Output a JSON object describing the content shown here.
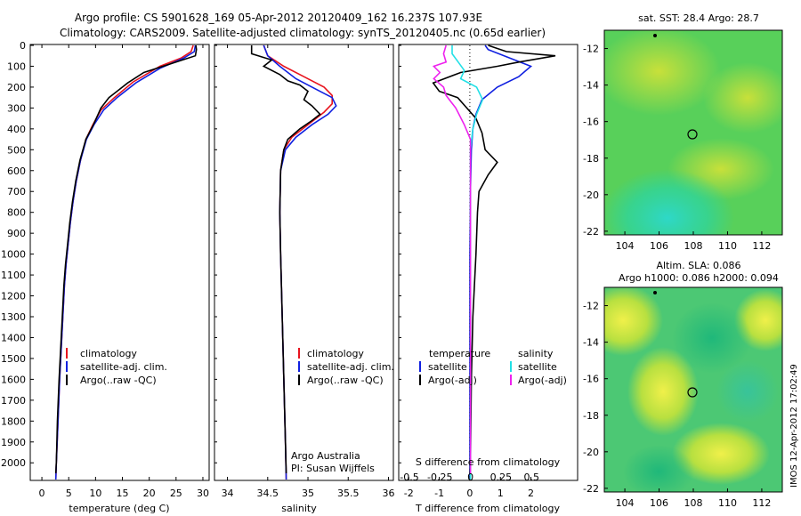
{
  "header": {
    "line1": "Argo profile: CS 5901628_169 05-Apr-2012 20120409_162 16.237S 107.93E",
    "line2": "Climatology: CARS2009. Satellite-adjusted climatology: synTS_20120405.nc (0.65d earlier)"
  },
  "colors": {
    "climatology": "#e8141e",
    "satellite": "#1020e0",
    "argo": "#000000",
    "sal_satellite": "#22e0e6",
    "sal_argo": "#ee22ee"
  },
  "depth_ticks": [
    "0",
    "100",
    "200",
    "300",
    "400",
    "500",
    "600",
    "700",
    "800",
    "900",
    "1000",
    "1100",
    "1200",
    "1300",
    "1400",
    "1500",
    "1600",
    "1700",
    "1800",
    "1900",
    "2000"
  ],
  "temp_panel": {
    "xlabel": "temperature (deg C)",
    "xticks": [
      "0",
      "5",
      "10",
      "15",
      "20",
      "25",
      "30"
    ],
    "legend": [
      "climatology",
      "satellite-adj. clim.",
      "Argo(..raw -QC)"
    ]
  },
  "sal_panel": {
    "xlabel": "salinity",
    "xticks": [
      "34",
      "34.5",
      "35",
      "35.5",
      "36"
    ],
    "legend": [
      "climatology",
      "satellite-adj. clim.",
      "Argo(..raw -QC)"
    ],
    "note1": "Argo Australia",
    "note2": "PI: Susan Wijffels"
  },
  "diff_panel": {
    "xlabel": "T difference from climatology",
    "top_label": "S difference from climatology",
    "s_ticks": [
      "-0.5",
      "-0.25",
      "0",
      "0.25",
      "0.5"
    ],
    "t_ticks": [
      "-2",
      "-1",
      "0",
      "1",
      "2"
    ],
    "legend_t_title": "temperature",
    "legend_s_title": "salinity",
    "legend_t": [
      "satellite",
      "Argo(-adj)"
    ],
    "legend_s": [
      "satellite",
      "Argo(-adj)"
    ]
  },
  "map1": {
    "title": "sat. SST: 28.4  Argo: 28.7",
    "yticks": [
      "-12",
      "-14",
      "-16",
      "-18",
      "-20",
      "-22"
    ],
    "xticks": [
      "104",
      "106",
      "108",
      "110",
      "112"
    ]
  },
  "map2": {
    "title1": "Altim. SLA: 0.086",
    "title2": "Argo h1000: 0.086  h2000: 0.094",
    "yticks": [
      "-12",
      "-14",
      "-16",
      "-18",
      "-20",
      "-22"
    ],
    "xticks": [
      "104",
      "106",
      "108",
      "110",
      "112"
    ]
  },
  "footer_stamp": "IMOS 12-Apr-2012 17:02:49",
  "chart_data": [
    {
      "type": "line",
      "title": "",
      "xlabel": "temperature (deg C)",
      "ylabel": "",
      "xlim": [
        -2,
        31
      ],
      "ylim": [
        2080,
        0
      ],
      "series": [
        {
          "name": "climatology",
          "points": [
            [
              28.2,
              0
            ],
            [
              27.8,
              30
            ],
            [
              26.0,
              60
            ],
            [
              22,
              100
            ],
            [
              17,
              175
            ],
            [
              13.5,
              250
            ],
            [
              11,
              310
            ],
            [
              9.5,
              380
            ],
            [
              8.2,
              450
            ],
            [
              7.2,
              550
            ],
            [
              6.4,
              650
            ],
            [
              5.8,
              750
            ],
            [
              5.3,
              850
            ],
            [
              4.9,
              950
            ],
            [
              4.5,
              1050
            ],
            [
              4.2,
              1150
            ],
            [
              3.9,
              1300
            ],
            [
              3.6,
              1450
            ],
            [
              3.3,
              1600
            ],
            [
              3.0,
              1800
            ],
            [
              2.7,
              2000
            ],
            [
              2.6,
              2080
            ]
          ]
        },
        {
          "name": "satellite-adj. clim.",
          "points": [
            [
              28.6,
              0
            ],
            [
              28.4,
              30
            ],
            [
              26.5,
              60
            ],
            [
              22,
              110
            ],
            [
              17.5,
              180
            ],
            [
              14,
              250
            ],
            [
              11.5,
              310
            ],
            [
              9.7,
              380
            ],
            [
              8.3,
              450
            ],
            [
              7.2,
              550
            ],
            [
              6.4,
              650
            ],
            [
              5.8,
              750
            ],
            [
              5.3,
              850
            ],
            [
              4.9,
              950
            ],
            [
              4.5,
              1050
            ],
            [
              4.2,
              1150
            ],
            [
              3.9,
              1300
            ],
            [
              3.6,
              1450
            ],
            [
              3.3,
              1600
            ],
            [
              3.0,
              1800
            ],
            [
              2.7,
              2000
            ],
            [
              2.6,
              2080
            ]
          ]
        },
        {
          "name": "Argo(..raw -QC)",
          "points": [
            [
              28.7,
              0
            ],
            [
              28.8,
              20
            ],
            [
              28.6,
              50
            ],
            [
              25,
              80
            ],
            [
              19,
              130
            ],
            [
              16,
              180
            ],
            [
              14,
              220
            ],
            [
              12.5,
              250
            ],
            [
              11,
              300
            ],
            [
              9.6,
              380
            ],
            [
              8.2,
              450
            ],
            [
              7.1,
              550
            ],
            [
              6.3,
              650
            ],
            [
              5.7,
              750
            ],
            [
              5.2,
              850
            ],
            [
              4.8,
              950
            ],
            [
              4.4,
              1050
            ],
            [
              4.1,
              1150
            ],
            [
              3.8,
              1300
            ],
            [
              3.5,
              1450
            ],
            [
              3.2,
              1600
            ],
            [
              2.9,
              1800
            ],
            [
              2.7,
              2000
            ],
            [
              2.6,
              2050
            ]
          ]
        }
      ]
    },
    {
      "type": "line",
      "title": "",
      "xlabel": "salinity",
      "ylabel": "",
      "xlim": [
        33.85,
        36.05
      ],
      "ylim": [
        2080,
        0
      ],
      "series": [
        {
          "name": "climatology",
          "points": [
            [
              34.45,
              0
            ],
            [
              34.5,
              50
            ],
            [
              34.7,
              100
            ],
            [
              34.95,
              150
            ],
            [
              35.2,
              200
            ],
            [
              35.3,
              240
            ],
            [
              35.3,
              280
            ],
            [
              35.2,
              320
            ],
            [
              35.0,
              380
            ],
            [
              34.8,
              440
            ],
            [
              34.7,
              500
            ],
            [
              34.66,
              600
            ],
            [
              34.65,
              800
            ],
            [
              34.66,
              1000
            ],
            [
              34.68,
              1300
            ],
            [
              34.7,
              1600
            ],
            [
              34.72,
              1900
            ],
            [
              34.73,
              2080
            ]
          ]
        },
        {
          "name": "satellite-adj. clim.",
          "points": [
            [
              34.45,
              0
            ],
            [
              34.5,
              50
            ],
            [
              34.65,
              100
            ],
            [
              34.85,
              160
            ],
            [
              35.1,
              210
            ],
            [
              35.3,
              250
            ],
            [
              35.35,
              290
            ],
            [
              35.25,
              330
            ],
            [
              35.05,
              380
            ],
            [
              34.85,
              440
            ],
            [
              34.72,
              500
            ],
            [
              34.66,
              600
            ],
            [
              34.65,
              800
            ],
            [
              34.66,
              1000
            ],
            [
              34.68,
              1300
            ],
            [
              34.7,
              1600
            ],
            [
              34.72,
              1900
            ],
            [
              34.73,
              2080
            ]
          ]
        },
        {
          "name": "Argo(..raw -QC)",
          "points": [
            [
              34.3,
              0
            ],
            [
              34.3,
              40
            ],
            [
              34.55,
              70
            ],
            [
              34.45,
              100
            ],
            [
              34.65,
              140
            ],
            [
              34.75,
              170
            ],
            [
              34.9,
              190
            ],
            [
              35.0,
              220
            ],
            [
              34.95,
              260
            ],
            [
              35.05,
              290
            ],
            [
              35.15,
              330
            ],
            [
              35.05,
              360
            ],
            [
              34.9,
              400
            ],
            [
              34.75,
              450
            ],
            [
              34.7,
              500
            ],
            [
              34.66,
              600
            ],
            [
              34.65,
              800
            ],
            [
              34.66,
              1000
            ],
            [
              34.68,
              1300
            ],
            [
              34.7,
              1600
            ],
            [
              34.72,
              1900
            ],
            [
              34.73,
              2050
            ]
          ]
        }
      ]
    },
    {
      "type": "line",
      "title": "",
      "xlabel": "T difference from climatology",
      "ylabel": "",
      "xlim": [
        -2.3,
        3.5
      ],
      "ylim": [
        2080,
        0
      ],
      "series": [
        {
          "name": "satellite",
          "points": [
            [
              0.5,
              0
            ],
            [
              0.6,
              20
            ],
            [
              1.3,
              60
            ],
            [
              2.0,
              100
            ],
            [
              1.6,
              150
            ],
            [
              0.9,
              200
            ],
            [
              0.4,
              260
            ],
            [
              0.2,
              330
            ],
            [
              0.1,
              400
            ],
            [
              0.05,
              500
            ],
            [
              0.02,
              700
            ],
            [
              0,
              1000
            ],
            [
              0,
              1500
            ],
            [
              0,
              2000
            ],
            [
              0,
              2080
            ]
          ]
        },
        {
          "name": "Argo(-adj)",
          "points": [
            [
              0.6,
              0
            ],
            [
              1.2,
              30
            ],
            [
              2.8,
              50
            ],
            [
              1.6,
              80
            ],
            [
              0.9,
              100
            ],
            [
              -0.3,
              130
            ],
            [
              -1.2,
              180
            ],
            [
              -1.0,
              220
            ],
            [
              -0.4,
              250
            ],
            [
              -0.1,
              300
            ],
            [
              0.2,
              350
            ],
            [
              0.4,
              420
            ],
            [
              0.5,
              500
            ],
            [
              0.9,
              560
            ],
            [
              0.6,
              620
            ],
            [
              0.3,
              700
            ],
            [
              0.25,
              800
            ],
            [
              0.2,
              1000
            ],
            [
              0.1,
              1300
            ],
            [
              0.05,
              1600
            ],
            [
              0.02,
              2000
            ],
            [
              0,
              2050
            ]
          ]
        }
      ]
    },
    {
      "type": "line",
      "title": "S difference from climatology",
      "xlabel": "",
      "ylabel": "",
      "xlim": [
        -0.58,
        0.87
      ],
      "ylim": [
        2080,
        0
      ],
      "series": [
        {
          "name": "satellite",
          "points": [
            [
              -0.15,
              0
            ],
            [
              -0.15,
              40
            ],
            [
              -0.1,
              80
            ],
            [
              -0.05,
              120
            ],
            [
              -0.08,
              160
            ],
            [
              0.05,
              200
            ],
            [
              0.1,
              260
            ],
            [
              0.05,
              330
            ],
            [
              0.02,
              400
            ],
            [
              0,
              500
            ],
            [
              0,
              1000
            ],
            [
              0,
              2080
            ]
          ]
        },
        {
          "name": "Argo(-adj)",
          "points": [
            [
              -0.2,
              0
            ],
            [
              -0.22,
              40
            ],
            [
              -0.2,
              80
            ],
            [
              -0.3,
              100
            ],
            [
              -0.25,
              130
            ],
            [
              -0.3,
              160
            ],
            [
              -0.22,
              200
            ],
            [
              -0.2,
              240
            ],
            [
              -0.12,
              300
            ],
            [
              -0.05,
              380
            ],
            [
              0,
              450
            ],
            [
              0,
              1000
            ],
            [
              0,
              2050
            ]
          ]
        }
      ]
    }
  ]
}
